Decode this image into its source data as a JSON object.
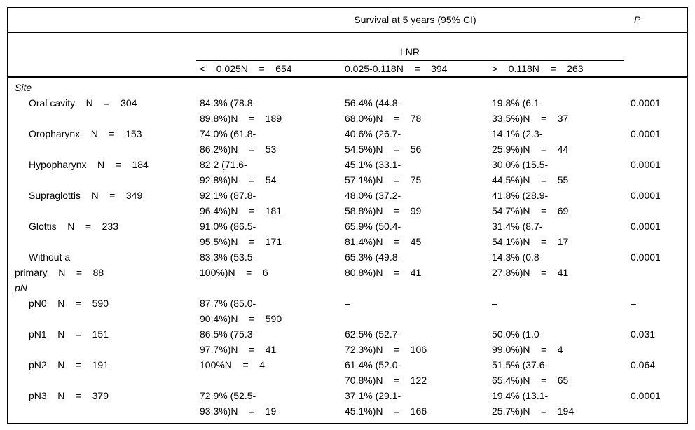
{
  "table": {
    "header": {
      "survival_title": "Survival at 5 years (95% CI)",
      "p_label": "P",
      "lnr_label": "LNR",
      "subheaders": [
        "<    0.025N    =    654",
        "0.025-0.118N    =    394",
        ">    0.118N    =    263"
      ]
    },
    "sections": [
      {
        "title": "Site",
        "rows": [
          {
            "label_lines": [
              "Oral cavity    N    =    304"
            ],
            "cells": [
              [
                "84.3% (78.8-",
                "89.8%)N    =    189"
              ],
              [
                "56.4% (44.8-",
                "68.0%)N    =    78"
              ],
              [
                "19.8% (6.1-",
                "33.5%)N    =    37"
              ]
            ],
            "p": "0.0001"
          },
          {
            "label_lines": [
              "Oropharynx    N    =    153"
            ],
            "cells": [
              [
                "74.0% (61.8-",
                "86.2%)N    =    53"
              ],
              [
                "40.6% (26.7-",
                "54.5%)N    =    56"
              ],
              [
                "14.1% (2.3-",
                "25.9%)N    =    44"
              ]
            ],
            "p": "0.0001"
          },
          {
            "label_lines": [
              "Hypopharynx    N    =    184"
            ],
            "cells": [
              [
                "82.2 (71.6-",
                "92.8%)N    =    54"
              ],
              [
                "45.1% (33.1-",
                "57.1%)N    =    75"
              ],
              [
                "30.0% (15.5-",
                "44.5%)N    =    55"
              ]
            ],
            "p": "0.0001"
          },
          {
            "label_lines": [
              "Supraglottis    N    =    349"
            ],
            "cells": [
              [
                "92.1% (87.8-",
                "96.4%)N    =    181"
              ],
              [
                "48.0% (37.2-",
                "58.8%)N    =    99"
              ],
              [
                "41.8% (28.9-",
                "54.7%)N    =    69"
              ]
            ],
            "p": "0.0001"
          },
          {
            "label_lines": [
              "Glottis    N    =    233"
            ],
            "cells": [
              [
                "91.0% (86.5-",
                "95.5%)N    =    171"
              ],
              [
                "65.9% (50.4-",
                "81.4%)N    =    45"
              ],
              [
                "31.4% (8.7-",
                "54.1%)N    =    17"
              ]
            ],
            "p": "0.0001"
          },
          {
            "label_lines": [
              "Without a",
              "primary    N    =    88"
            ],
            "cells": [
              [
                "83.3% (53.5-",
                "100%)N    =    6"
              ],
              [
                "65.3% (49.8-",
                "80.8%)N    =    41"
              ],
              [
                "14.3% (0.8-",
                "27.8%)N    =    41"
              ]
            ],
            "p": "0.0001"
          }
        ]
      },
      {
        "title": "pN",
        "rows": [
          {
            "label_lines": [
              "pN0    N    =    590"
            ],
            "cells": [
              [
                "87.7% (85.0-",
                "90.4%)N    =    590"
              ],
              [
                "–"
              ],
              [
                "–"
              ]
            ],
            "p": "–"
          },
          {
            "label_lines": [
              "pN1    N    =    151"
            ],
            "cells": [
              [
                "86.5% (75.3-",
                "97.7%)N    =    41"
              ],
              [
                "62.5% (52.7-",
                "72.3%)N    =    106"
              ],
              [
                "50.0% (1.0-",
                "99.0%)N    =    4"
              ]
            ],
            "p": "0.031"
          },
          {
            "label_lines": [
              "pN2    N    =    191"
            ],
            "cells": [
              [
                "100%N    =    4"
              ],
              [
                "61.4% (52.0-",
                "70.8%)N    =    122"
              ],
              [
                "51.5% (37.6-",
                "65.4%)N    =    65"
              ]
            ],
            "p": "0.064"
          },
          {
            "label_lines": [
              "pN3    N    =    379"
            ],
            "cells": [
              [
                "72.9% (52.5-",
                "93.3%)N    =    19"
              ],
              [
                "37.1% (29.1-",
                "45.1%)N    =    166"
              ],
              [
                "19.4% (13.1-",
                "25.7%)N    =    194"
              ]
            ],
            "p": "0.0001"
          }
        ]
      }
    ]
  }
}
